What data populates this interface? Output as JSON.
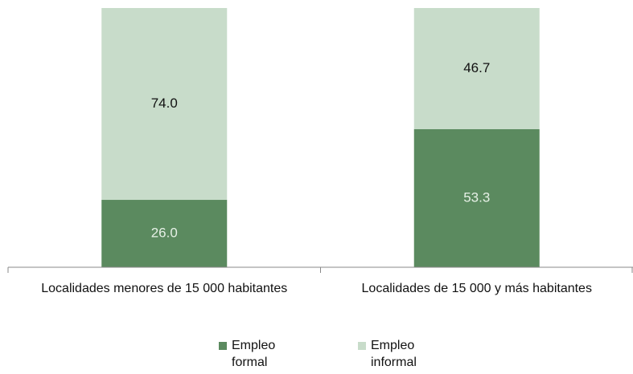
{
  "chart_data": {
    "type": "stacked_bar",
    "categories": [
      "Localidades menores de 15 000 habitantes",
      "Localidades de 15 000 y más habitantes"
    ],
    "series": [
      {
        "name": "Empleo formal",
        "color": "#5b8a5f",
        "label_color": "#e6f0e6",
        "values": [
          26.0,
          53.3
        ],
        "value_labels": [
          "26.0",
          "53.3"
        ]
      },
      {
        "name": "Empleo informal",
        "color": "#c8dcca",
        "label_color": "#111111",
        "values": [
          74.0,
          46.7
        ],
        "value_labels": [
          "74.0",
          "46.7"
        ]
      }
    ],
    "ylim": [
      0,
      100
    ]
  }
}
